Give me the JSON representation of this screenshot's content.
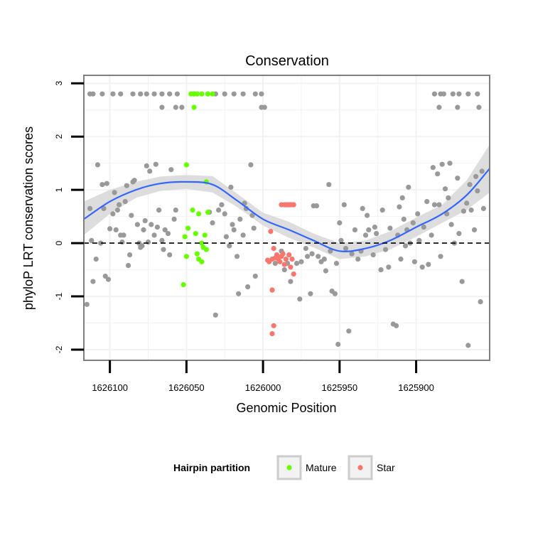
{
  "chart_data": {
    "type": "scatter",
    "title": "Conservation",
    "xlabel": "Genomic Position",
    "ylabel": "phyloP LRT conservation scores",
    "x_reversed": true,
    "xlim": [
      1626117,
      1625852
    ],
    "ylim": [
      -2.2,
      3.15
    ],
    "x_ticks": [
      1626100,
      1626050,
      1626000,
      1625950,
      1625900
    ],
    "x_tick_labels": [
      "1626100",
      "1626050",
      "1626000",
      "1625950",
      "1625900"
    ],
    "y_ticks": [
      -2,
      -1,
      0,
      1,
      2,
      3
    ],
    "y_tick_labels": [
      "-2",
      "-1",
      "0",
      "1",
      "2",
      "3"
    ],
    "reference_line": {
      "y": 0,
      "style": "dashed"
    },
    "grid": true,
    "legend": {
      "title": "Hairpin partition",
      "placement": "bottom",
      "items": [
        {
          "label": "Mature",
          "color": "#66ff00"
        },
        {
          "label": "Star",
          "color": "#f8766d"
        }
      ]
    },
    "colors": {
      "other": "#999999",
      "smooth_line": "#3366ff",
      "ribbon": "#d9d9d9",
      "panel_border": "#7f7f7f",
      "grid": "#f2f2f2"
    },
    "series": [
      {
        "name": "",
        "points": [
          [
            1626113,
            2.8
          ],
          [
            1626111,
            2.8
          ],
          [
            1626105,
            2.8
          ],
          [
            1626098,
            2.8
          ],
          [
            1626093,
            2.8
          ],
          [
            1626085,
            2.8
          ],
          [
            1626080,
            2.8
          ],
          [
            1626076,
            2.8
          ],
          [
            1626071,
            2.8
          ],
          [
            1626066,
            2.8
          ],
          [
            1626061,
            2.8
          ],
          [
            1626056,
            2.8
          ],
          [
            1626045,
            2.8
          ],
          [
            1626036,
            2.8
          ],
          [
            1626031,
            2.8
          ],
          [
            1626025,
            2.8
          ],
          [
            1626019,
            2.8
          ],
          [
            1626013,
            2.8
          ],
          [
            1626005,
            2.8
          ],
          [
            1626001,
            2.8
          ],
          [
            1625888,
            2.8
          ],
          [
            1625884,
            2.8
          ],
          [
            1625882,
            2.8
          ],
          [
            1625876,
            2.8
          ],
          [
            1625872,
            2.8
          ],
          [
            1625866,
            2.8
          ],
          [
            1625860,
            2.8
          ],
          [
            1626066,
            2.55
          ],
          [
            1626057,
            2.55
          ],
          [
            1626053,
            2.55
          ],
          [
            1626001,
            2.55
          ],
          [
            1625999,
            2.55
          ],
          [
            1625885,
            2.55
          ],
          [
            1625873,
            2.55
          ],
          [
            1625859,
            2.55
          ],
          [
            1626115,
            -1.15
          ],
          [
            1626113,
            0.65
          ],
          [
            1626112,
            0.05
          ],
          [
            1626111,
            -0.72
          ],
          [
            1626109,
            -0.3
          ],
          [
            1626108,
            1.47
          ],
          [
            1626106,
            0.0
          ],
          [
            1626105,
            1.1
          ],
          [
            1626104,
            0.65
          ],
          [
            1626103,
            -0.62
          ],
          [
            1626102,
            1.12
          ],
          [
            1626101,
            -0.68
          ],
          [
            1626100,
            0.27
          ],
          [
            1626098,
            0.55
          ],
          [
            1626097,
            0.95
          ],
          [
            1626096,
            0.25
          ],
          [
            1626095,
            0.62
          ],
          [
            1626094,
            0.72
          ],
          [
            1626093,
            0.15
          ],
          [
            1626092,
            0.02
          ],
          [
            1626091,
            0.15
          ],
          [
            1626090,
            0.78
          ],
          [
            1626089,
            1.08
          ],
          [
            1626088,
            -0.42
          ],
          [
            1626087,
            -0.22
          ],
          [
            1626086,
            0.52
          ],
          [
            1626085,
            1.15
          ],
          [
            1626084,
            1.18
          ],
          [
            1626082,
            0.35
          ],
          [
            1626081,
            0.0
          ],
          [
            1626080,
            -0.08
          ],
          [
            1626079,
            -0.05
          ],
          [
            1626078,
            0.25
          ],
          [
            1626077,
            0.42
          ],
          [
            1626076,
            1.45
          ],
          [
            1626075,
            0.02
          ],
          [
            1626074,
            1.35
          ],
          [
            1626073,
            0.35
          ],
          [
            1626071,
            0.15
          ],
          [
            1626070,
            1.48
          ],
          [
            1626069,
            0.3
          ],
          [
            1626068,
            0.62
          ],
          [
            1626066,
            0.05
          ],
          [
            1626065,
            -0.12
          ],
          [
            1626064,
            0.25
          ],
          [
            1626062,
            0.18
          ],
          [
            1626061,
            -0.22
          ],
          [
            1626060,
            1.38
          ],
          [
            1626058,
            0.45
          ],
          [
            1626057,
            0.62
          ],
          [
            1626035,
            0.58
          ],
          [
            1626033,
            0.38
          ],
          [
            1626031,
            -1.35
          ],
          [
            1626029,
            0.62
          ],
          [
            1626027,
            0.72
          ],
          [
            1626025,
            0.55
          ],
          [
            1626024,
            0.12
          ],
          [
            1626022,
            -0.05
          ],
          [
            1626021,
            1.05
          ],
          [
            1626020,
            0.35
          ],
          [
            1626019,
            0.25
          ],
          [
            1626017,
            -0.25
          ],
          [
            1626016,
            -0.95
          ],
          [
            1626015,
            0.45
          ],
          [
            1626013,
            0.15
          ],
          [
            1626012,
            0.75
          ],
          [
            1626011,
            0.65
          ],
          [
            1626010,
            -0.82
          ],
          [
            1626008,
            1.47
          ],
          [
            1626007,
            0.52
          ],
          [
            1626006,
            0.28
          ],
          [
            1626005,
            -0.62
          ],
          [
            1625992,
            -0.38
          ],
          [
            1625990,
            -0.3
          ],
          [
            1625988,
            -0.15
          ],
          [
            1625986,
            -0.5
          ],
          [
            1625984,
            -0.38
          ],
          [
            1625982,
            -0.72
          ],
          [
            1625978,
            -0.38
          ],
          [
            1625976,
            -1.05
          ],
          [
            1625975,
            -0.35
          ],
          [
            1625972,
            -0.1
          ],
          [
            1625971,
            -0.25
          ],
          [
            1625969,
            -0.95
          ],
          [
            1625968,
            -0.2
          ],
          [
            1625967,
            0.7
          ],
          [
            1625965,
            0.7
          ],
          [
            1625964,
            -0.25
          ],
          [
            1625962,
            -0.35
          ],
          [
            1625960,
            -0.3
          ],
          [
            1625959,
            -0.52
          ],
          [
            1625957,
            1.1
          ],
          [
            1625956,
            -0.15
          ],
          [
            1625955,
            -0.9
          ],
          [
            1625953,
            -0.95
          ],
          [
            1625952,
            -0.38
          ],
          [
            1625951,
            -1.9
          ],
          [
            1625950,
            0.38
          ],
          [
            1625949,
            0.05
          ],
          [
            1625947,
            0.72
          ],
          [
            1625946,
            -0.1
          ],
          [
            1625944,
            -1.65
          ],
          [
            1625942,
            -0.2
          ],
          [
            1625940,
            0.25
          ],
          [
            1625938,
            -0.3
          ],
          [
            1625936,
            -0.15
          ],
          [
            1625935,
            0.65
          ],
          [
            1625933,
            0.15
          ],
          [
            1625932,
            0.52
          ],
          [
            1625931,
            0.25
          ],
          [
            1625928,
            -0.22
          ],
          [
            1625927,
            0.3
          ],
          [
            1625926,
            0.18
          ],
          [
            1625923,
            -0.5
          ],
          [
            1625922,
            0.62
          ],
          [
            1625920,
            -0.12
          ],
          [
            1625918,
            -0.45
          ],
          [
            1625917,
            0.28
          ],
          [
            1625915,
            -1.52
          ],
          [
            1625913,
            -1.55
          ],
          [
            1625912,
            0.15
          ],
          [
            1625911,
            0.68
          ],
          [
            1625910,
            -0.3
          ],
          [
            1625909,
            0.85
          ],
          [
            1625908,
            0.45
          ],
          [
            1625907,
            -0.05
          ],
          [
            1625906,
            0.25
          ],
          [
            1625905,
            1.05
          ],
          [
            1625904,
            0.0
          ],
          [
            1625902,
            0.38
          ],
          [
            1625901,
            -0.35
          ],
          [
            1625899,
            0.55
          ],
          [
            1625898,
            0.05
          ],
          [
            1625896,
            -0.45
          ],
          [
            1625895,
            0.3
          ],
          [
            1625893,
            0.78
          ],
          [
            1625892,
            -0.4
          ],
          [
            1625890,
            0.15
          ],
          [
            1625889,
            1.42
          ],
          [
            1625888,
            0.72
          ],
          [
            1625886,
            1.3
          ],
          [
            1625885,
            0.72
          ],
          [
            1625884,
            -0.25
          ],
          [
            1625883,
            1.48
          ],
          [
            1625881,
            1.02
          ],
          [
            1625880,
            0.55
          ],
          [
            1625879,
            0.85
          ],
          [
            1625878,
            1.5
          ],
          [
            1625877,
            0.35
          ],
          [
            1625875,
            0.0
          ],
          [
            1625873,
            1.22
          ],
          [
            1625872,
            0.18
          ],
          [
            1625870,
            -0.72
          ],
          [
            1625869,
            0.6
          ],
          [
            1625867,
            0.75
          ],
          [
            1625866,
            -1.92
          ],
          [
            1625865,
            1.1
          ],
          [
            1625864,
            0.62
          ],
          [
            1625862,
            0.25
          ],
          [
            1625861,
            1.25
          ],
          [
            1625860,
            0.98
          ],
          [
            1625858,
            -1.1
          ],
          [
            1625857,
            1.35
          ],
          [
            1625856,
            0.65
          ]
        ],
        "color": "#999999"
      },
      {
        "name": "Mature",
        "points": [
          [
            1626047,
            2.8
          ],
          [
            1626045,
            2.8
          ],
          [
            1626043,
            2.8
          ],
          [
            1626040,
            2.8
          ],
          [
            1626036,
            2.8
          ],
          [
            1626033,
            2.8
          ],
          [
            1626045,
            2.55
          ],
          [
            1626050,
            1.47
          ],
          [
            1626051,
            0.12
          ],
          [
            1626049,
            0.28
          ],
          [
            1626050,
            -0.25
          ],
          [
            1626052,
            -0.78
          ],
          [
            1626046,
            0.62
          ],
          [
            1626044,
            0.18
          ],
          [
            1626042,
            0.55
          ],
          [
            1626040,
            0.0
          ],
          [
            1626039,
            -0.08
          ],
          [
            1626038,
            0.15
          ],
          [
            1626037,
            -0.12
          ],
          [
            1626043,
            -0.2
          ],
          [
            1626042,
            -0.3
          ],
          [
            1626040,
            -0.35
          ],
          [
            1626036,
            0.58
          ],
          [
            1626037,
            1.15
          ]
        ],
        "color": "#66ff00"
      },
      {
        "name": "Star",
        "points": [
          [
            1625988,
            0.72
          ],
          [
            1625986,
            0.72
          ],
          [
            1625985,
            0.72
          ],
          [
            1625984,
            0.72
          ],
          [
            1625983,
            0.72
          ],
          [
            1625982,
            0.72
          ],
          [
            1625981,
            0.72
          ],
          [
            1625980,
            0.72
          ],
          [
            1625995,
            0.22
          ],
          [
            1625993,
            -0.1
          ],
          [
            1625997,
            -0.32
          ],
          [
            1625996,
            -0.35
          ],
          [
            1625994,
            -0.3
          ],
          [
            1625991,
            -0.22
          ],
          [
            1625990,
            -0.3
          ],
          [
            1625988,
            -0.25
          ],
          [
            1625987,
            -0.2
          ],
          [
            1625986,
            -0.4
          ],
          [
            1625985,
            -0.3
          ],
          [
            1625983,
            -0.22
          ],
          [
            1625981,
            -0.3
          ],
          [
            1625980,
            -0.58
          ],
          [
            1625982,
            -0.45
          ],
          [
            1625992,
            -0.28
          ],
          [
            1625989,
            -0.35
          ],
          [
            1625994,
            -0.88
          ],
          [
            1625993,
            -1.55
          ],
          [
            1625994,
            -1.7
          ]
        ],
        "color": "#f8766d"
      }
    ],
    "smooth": {
      "x": [
        1626117,
        1626100,
        1626083,
        1626067,
        1626050,
        1626033,
        1626017,
        1626000,
        1625983,
        1625967,
        1625950,
        1625933,
        1625917,
        1625900,
        1625883,
        1625867,
        1625852
      ],
      "y": [
        0.45,
        0.78,
        1.0,
        1.12,
        1.15,
        1.1,
        0.8,
        0.45,
        0.25,
        0.05,
        -0.15,
        -0.1,
        0.05,
        0.3,
        0.55,
        0.9,
        1.4
      ],
      "lower": [
        0.15,
        0.55,
        0.85,
        0.98,
        1.02,
        0.95,
        0.68,
        0.33,
        0.1,
        -0.08,
        -0.3,
        -0.25,
        -0.12,
        0.12,
        0.38,
        0.62,
        0.95
      ],
      "upper": [
        0.78,
        1.0,
        1.15,
        1.25,
        1.28,
        1.26,
        0.93,
        0.57,
        0.4,
        0.18,
        0.0,
        0.05,
        0.22,
        0.48,
        0.72,
        1.18,
        1.85
      ]
    }
  }
}
